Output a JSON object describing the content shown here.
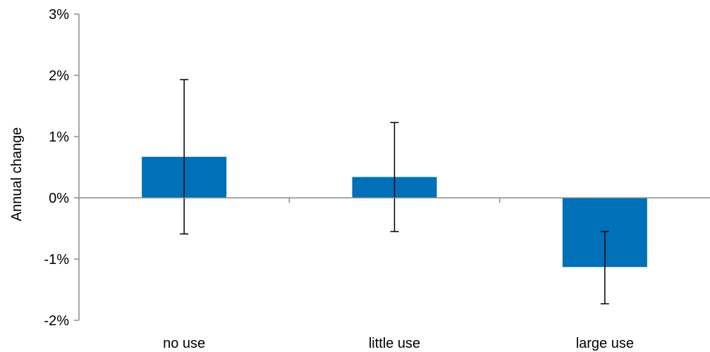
{
  "chart_data": {
    "type": "bar",
    "title": "",
    "xlabel": "",
    "ylabel": "Annual change",
    "categories": [
      "no use",
      "little use",
      "large use"
    ],
    "values": [
      0.67,
      0.34,
      -1.13
    ],
    "error_low": [
      -0.59,
      -0.55,
      -1.73
    ],
    "error_high": [
      1.93,
      1.23,
      -0.55
    ],
    "ylim": [
      -2,
      3
    ],
    "yticks": [
      3,
      2,
      1,
      0,
      -1,
      -2
    ],
    "ytick_labels": [
      "3%",
      "2%",
      "1%",
      "0%",
      "-1%",
      "-2%"
    ],
    "grid": false,
    "legend": "none",
    "colors": {
      "bar": "#0070b8",
      "axis": "#8c8c8c",
      "error_bar": "#000000"
    }
  }
}
